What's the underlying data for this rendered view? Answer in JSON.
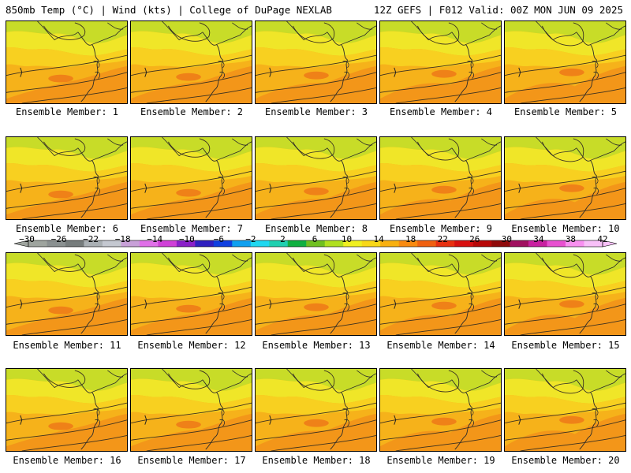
{
  "header": {
    "title_left": "850mb Temp (°C) | Wind (kts) | College of DuPage NEXLAB",
    "title_right": "12Z GEFS | F012 Valid: 00Z MON JUN 09 2025"
  },
  "members": [
    {
      "label": "Ensemble Member: 1"
    },
    {
      "label": "Ensemble Member: 2"
    },
    {
      "label": "Ensemble Member: 3"
    },
    {
      "label": "Ensemble Member: 4"
    },
    {
      "label": "Ensemble Member: 5"
    },
    {
      "label": "Ensemble Member: 6"
    },
    {
      "label": "Ensemble Member: 7"
    },
    {
      "label": "Ensemble Member: 8"
    },
    {
      "label": "Ensemble Member: 9"
    },
    {
      "label": "Ensemble Member: 10"
    },
    {
      "label": "Ensemble Member: 11"
    },
    {
      "label": "Ensemble Member: 12"
    },
    {
      "label": "Ensemble Member: 13"
    },
    {
      "label": "Ensemble Member: 14"
    },
    {
      "label": "Ensemble Member: 15"
    },
    {
      "label": "Ensemble Member: 16"
    },
    {
      "label": "Ensemble Member: 17"
    },
    {
      "label": "Ensemble Member: 18"
    },
    {
      "label": "Ensemble Member: 19"
    },
    {
      "label": "Ensemble Member: 20"
    }
  ],
  "colorbar": {
    "ticks": [
      "-30",
      "-26",
      "-22",
      "-18",
      "-14",
      "-10",
      "-6",
      "-2",
      "2",
      "6",
      "10",
      "14",
      "18",
      "22",
      "26",
      "30",
      "34",
      "38",
      "42"
    ],
    "colors": [
      "#9ea49e",
      "#8a9090",
      "#767c7c",
      "#aab0b4",
      "#c4c8d0",
      "#c8a0d8",
      "#e070e8",
      "#d040d8",
      "#8a20c8",
      "#3020c0",
      "#1040e0",
      "#10a0f0",
      "#20d8f0",
      "#20d0b0",
      "#10b040",
      "#70c020",
      "#b0e020",
      "#f0f020",
      "#f8d818",
      "#f8b010",
      "#f88a10",
      "#f06010",
      "#e83010",
      "#d81010",
      "#b80808",
      "#900a0a",
      "#a01060",
      "#c820a0",
      "#e850d0",
      "#f890f0",
      "#f8c0f8"
    ]
  }
}
